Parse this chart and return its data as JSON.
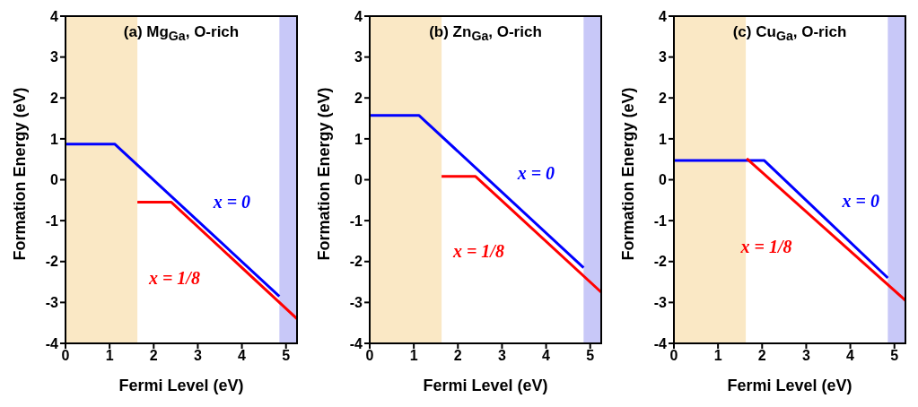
{
  "chart_data": [
    {
      "type": "line",
      "title": "(a) Mg$_{Ga}$, O-rich",
      "xlabel": "Fermi Level (eV)",
      "ylabel": "Formation Energy (eV)",
      "xlim": [
        0,
        5.25
      ],
      "xticks": [
        0,
        1,
        2,
        3,
        4,
        5
      ],
      "ylim": [
        -4,
        4
      ],
      "yticks": [
        -4,
        -3,
        -2,
        -1,
        0,
        1,
        2,
        3,
        4
      ],
      "bands": [
        {
          "axis": "x",
          "from": 0,
          "to": 1.63,
          "color": "#fae8c5"
        },
        {
          "axis": "x",
          "from": 4.85,
          "to": 5.25,
          "color": "#c8c8f8"
        }
      ],
      "series": [
        {
          "name": "x = 0",
          "color": "#0000ff",
          "x": [
            0,
            1.12,
            4.85
          ],
          "values": [
            0.87,
            0.87,
            -2.85
          ]
        },
        {
          "name": "x = 1/8",
          "color": "#ff0000",
          "x": [
            1.63,
            2.4,
            5.25
          ],
          "values": [
            -0.55,
            -0.55,
            -3.4
          ]
        }
      ]
    },
    {
      "type": "line",
      "title": "(b) Zn$_{Ga}$, O-rich",
      "xlabel": "Fermi Level (eV)",
      "ylabel": "Formation Energy (eV)",
      "xlim": [
        0,
        5.25
      ],
      "xticks": [
        0,
        1,
        2,
        3,
        4,
        5
      ],
      "ylim": [
        -4,
        4
      ],
      "yticks": [
        -4,
        -3,
        -2,
        -1,
        0,
        1,
        2,
        3,
        4
      ],
      "bands": [
        {
          "axis": "x",
          "from": 0,
          "to": 1.63,
          "color": "#fae8c5"
        },
        {
          "axis": "x",
          "from": 4.85,
          "to": 5.25,
          "color": "#c8c8f8"
        }
      ],
      "series": [
        {
          "name": "x = 0",
          "color": "#0000ff",
          "x": [
            0,
            1.12,
            4.85
          ],
          "values": [
            1.57,
            1.57,
            -2.15
          ]
        },
        {
          "name": "x = 1/8",
          "color": "#ff0000",
          "x": [
            1.63,
            2.4,
            5.25
          ],
          "values": [
            0.08,
            0.08,
            -2.75
          ]
        }
      ]
    },
    {
      "type": "line",
      "title": "(c) Cu$_{Ga}$, O-rich",
      "xlabel": "Fermi Level (eV)",
      "ylabel": "Formation Energy (eV)",
      "xlim": [
        0,
        5.25
      ],
      "xticks": [
        0,
        1,
        2,
        3,
        4,
        5
      ],
      "ylim": [
        -4,
        4
      ],
      "yticks": [
        -4,
        -3,
        -2,
        -1,
        0,
        1,
        2,
        3,
        4
      ],
      "bands": [
        {
          "axis": "x",
          "from": 0,
          "to": 1.63,
          "color": "#fae8c5"
        },
        {
          "axis": "x",
          "from": 4.85,
          "to": 5.25,
          "color": "#c8c8f8"
        }
      ],
      "series": [
        {
          "name": "x = 0",
          "color": "#0000ff",
          "x": [
            0,
            2.05,
            4.85
          ],
          "values": [
            0.47,
            0.47,
            -2.4
          ]
        },
        {
          "name": "x = 1/8",
          "color": "#ff0000",
          "x": [
            1.65,
            5.25
          ],
          "values": [
            0.52,
            -2.95
          ]
        }
      ]
    }
  ]
}
